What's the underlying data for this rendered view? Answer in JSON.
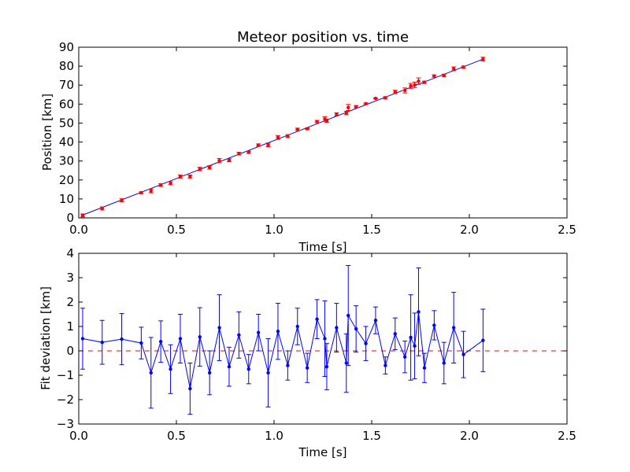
{
  "chart_data": [
    {
      "type": "scatter",
      "title": "Meteor position vs. time",
      "xlabel": "Time [s]",
      "ylabel": "Position [km]",
      "xlim": [
        0,
        2.5
      ],
      "ylim": [
        0,
        90
      ],
      "xticks": [
        "0.0",
        "0.5",
        "1.0",
        "1.5",
        "2.0",
        "2.5"
      ],
      "yticks": [
        "0",
        "10",
        "20",
        "30",
        "40",
        "50",
        "60",
        "70",
        "80",
        "90"
      ],
      "grid": false,
      "colors": {
        "points": "#ff0000",
        "fit_line": "#0000ff",
        "error_bars": "#ff0000"
      },
      "fit_line": {
        "x": [
          0.02,
          2.07
        ],
        "y": [
          1.5,
          83.7
        ]
      },
      "series": [
        {
          "x": [
            0.02,
            0.12,
            0.22,
            0.32,
            0.37,
            0.42,
            0.47,
            0.52,
            0.57,
            0.62,
            0.67,
            0.72,
            0.77,
            0.82,
            0.87,
            0.92,
            0.97,
            1.02,
            1.07,
            1.12,
            1.17,
            1.22,
            1.26,
            1.27,
            1.32,
            1.37,
            1.38,
            1.42,
            1.47,
            1.52,
            1.57,
            1.62,
            1.67,
            1.7,
            1.72,
            1.74,
            1.77,
            1.82,
            1.87,
            1.92,
            1.97,
            2.07
          ],
          "y": [
            1.3,
            5.0,
            9.3,
            13.3,
            14.2,
            17.3,
            18.3,
            21.8,
            21.8,
            25.8,
            26.6,
            30.2,
            30.4,
            33.9,
            34.6,
            38.4,
            38.5,
            42.4,
            43.1,
            46.7,
            47.0,
            50.8,
            52.1,
            51.2,
            54.6,
            55.3,
            58.2,
            58.6,
            60.2,
            63.0,
            63.3,
            66.4,
            67.2,
            69.6,
            70.1,
            72.1,
            71.5,
            74.8,
            75.1,
            78.6,
            79.5,
            83.7
          ],
          "err": [
            0.8,
            0.8,
            0.8,
            0.5,
            1.0,
            0.7,
            0.8,
            0.8,
            0.8,
            0.9,
            0.9,
            1.1,
            0.8,
            0.7,
            0.6,
            0.6,
            1.0,
            1.0,
            0.8,
            0.6,
            0.4,
            0.6,
            1.2,
            0.9,
            0.8,
            0.9,
            1.6,
            0.6,
            0.4,
            0.3,
            0.6,
            0.9,
            1.3,
            1.3,
            1.5,
            1.7,
            0.6,
            0.6,
            0.7,
            1.0,
            0.6,
            1.0
          ]
        }
      ]
    },
    {
      "type": "line",
      "title": "",
      "xlabel": "Time [s]",
      "ylabel": "Fit deviation [km]",
      "xlim": [
        0,
        2.5
      ],
      "ylim": [
        -3,
        4
      ],
      "xticks": [
        "0.0",
        "0.5",
        "1.0",
        "1.5",
        "2.0",
        "2.5"
      ],
      "yticks": [
        "−3",
        "−2",
        "−1",
        "0",
        "1",
        "2",
        "3",
        "4"
      ],
      "grid": false,
      "reference_line": {
        "y": 0,
        "style": "dashed",
        "color": "#ff0000"
      },
      "colors": {
        "series": "#0000ff",
        "error_bars": "#0000ff"
      },
      "series": [
        {
          "x": [
            0.02,
            0.12,
            0.22,
            0.32,
            0.37,
            0.42,
            0.47,
            0.52,
            0.57,
            0.62,
            0.67,
            0.72,
            0.77,
            0.82,
            0.87,
            0.92,
            0.97,
            1.02,
            1.07,
            1.12,
            1.17,
            1.22,
            1.26,
            1.27,
            1.32,
            1.37,
            1.38,
            1.42,
            1.47,
            1.52,
            1.57,
            1.62,
            1.67,
            1.7,
            1.72,
            1.74,
            1.77,
            1.82,
            1.87,
            1.92,
            1.97,
            2.07
          ],
          "y": [
            0.5,
            0.35,
            0.48,
            0.32,
            -0.9,
            0.38,
            -0.75,
            0.5,
            -1.55,
            0.57,
            -0.9,
            0.95,
            -0.65,
            0.65,
            -0.75,
            0.75,
            -0.9,
            0.8,
            -0.6,
            1.0,
            -0.7,
            1.3,
            0.5,
            -0.65,
            0.95,
            -0.5,
            1.45,
            0.9,
            0.3,
            1.25,
            -0.6,
            0.7,
            -0.25,
            0.55,
            0.2,
            1.6,
            -0.7,
            1.05,
            -0.5,
            0.95,
            -0.15,
            0.43
          ],
          "err": [
            1.25,
            0.9,
            1.05,
            0.65,
            1.45,
            0.85,
            1.0,
            1.0,
            1.05,
            1.2,
            0.9,
            1.35,
            0.8,
            0.95,
            0.6,
            0.75,
            1.4,
            1.15,
            0.6,
            0.75,
            0.6,
            0.8,
            1.55,
            0.95,
            1.0,
            1.2,
            2.05,
            0.95,
            0.7,
            0.55,
            0.35,
            0.65,
            0.65,
            1.75,
            1.35,
            1.8,
            0.6,
            0.6,
            0.85,
            1.45,
            0.95,
            1.28
          ]
        }
      ]
    }
  ]
}
